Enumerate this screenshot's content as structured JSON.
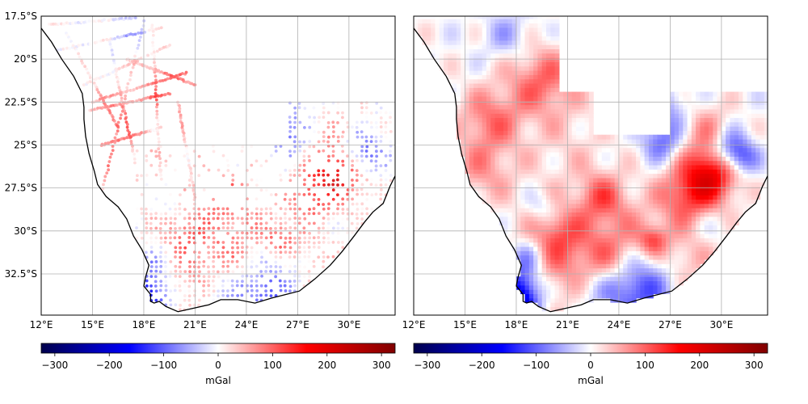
{
  "maps": [
    {
      "id": "left",
      "kind": "point-observations",
      "colorbar_label": "mGal"
    },
    {
      "id": "right",
      "kind": "gridded-field",
      "colorbar_label": "mGal"
    }
  ],
  "lon_ticks": [
    {
      "value": 12,
      "label": "12°E"
    },
    {
      "value": 15,
      "label": "15°E"
    },
    {
      "value": 18,
      "label": "18°E"
    },
    {
      "value": 21,
      "label": "21°E"
    },
    {
      "value": 24,
      "label": "24°E"
    },
    {
      "value": 27,
      "label": "27°E"
    },
    {
      "value": 30,
      "label": "30°E"
    }
  ],
  "lat_ticks": [
    {
      "value": -17.5,
      "label": "17.5°S"
    },
    {
      "value": -20,
      "label": "20°S"
    },
    {
      "value": -22.5,
      "label": "22.5°S"
    },
    {
      "value": -25,
      "label": "25°S"
    },
    {
      "value": -27.5,
      "label": "27.5°S"
    },
    {
      "value": -30,
      "label": "30°S"
    },
    {
      "value": -32.5,
      "label": "32.5°S"
    }
  ],
  "extent": {
    "lon": [
      12,
      32.7
    ],
    "lat": [
      -34.9,
      -17.5
    ]
  },
  "colorbar": {
    "range": [
      -325,
      325
    ],
    "ticks": [
      {
        "value": -300,
        "label": "−300"
      },
      {
        "value": -200,
        "label": "−200"
      },
      {
        "value": -100,
        "label": "−100"
      },
      {
        "value": 0,
        "label": "0"
      },
      {
        "value": 100,
        "label": "100"
      },
      {
        "value": 200,
        "label": "200"
      },
      {
        "value": 300,
        "label": "300"
      }
    ],
    "colormap": "seismic",
    "colors": [
      "#00004c",
      "#0000ff",
      "#ffffff",
      "#ff0000",
      "#800000"
    ]
  },
  "coastline": [
    [
      12.0,
      -18.2
    ],
    [
      12.6,
      -19.0
    ],
    [
      13.2,
      -20.0
    ],
    [
      13.9,
      -21.0
    ],
    [
      14.4,
      -22.0
    ],
    [
      14.5,
      -22.8
    ],
    [
      14.5,
      -23.5
    ],
    [
      14.6,
      -24.5
    ],
    [
      14.8,
      -25.5
    ],
    [
      15.1,
      -26.5
    ],
    [
      15.3,
      -27.3
    ],
    [
      15.8,
      -28.0
    ],
    [
      16.5,
      -28.6
    ],
    [
      17.0,
      -29.3
    ],
    [
      17.4,
      -30.3
    ],
    [
      17.9,
      -31.1
    ],
    [
      18.3,
      -32.0
    ],
    [
      18.1,
      -32.7
    ],
    [
      18.0,
      -33.2
    ],
    [
      18.4,
      -33.7
    ],
    [
      18.4,
      -34.1
    ],
    [
      18.6,
      -34.2
    ],
    [
      18.9,
      -34.1
    ],
    [
      19.3,
      -34.4
    ],
    [
      20.0,
      -34.7
    ],
    [
      20.9,
      -34.5
    ],
    [
      21.8,
      -34.3
    ],
    [
      22.5,
      -34.0
    ],
    [
      23.5,
      -34.0
    ],
    [
      24.5,
      -34.2
    ],
    [
      25.5,
      -33.9
    ],
    [
      26.3,
      -33.7
    ],
    [
      27.1,
      -33.5
    ],
    [
      28.0,
      -32.8
    ],
    [
      28.9,
      -32.0
    ],
    [
      29.6,
      -31.2
    ],
    [
      30.3,
      -30.3
    ],
    [
      30.9,
      -29.5
    ],
    [
      31.4,
      -28.9
    ],
    [
      32.0,
      -28.4
    ],
    [
      32.4,
      -27.4
    ],
    [
      32.7,
      -26.8
    ]
  ],
  "anomalies": [
    {
      "lon": 18.0,
      "lat": -34.4,
      "r": 0.9,
      "value": -220
    },
    {
      "lon": 18.3,
      "lat": -33.0,
      "r": 0.9,
      "value": -110
    },
    {
      "lon": 18.6,
      "lat": -31.5,
      "r": 0.7,
      "value": -70
    },
    {
      "lon": 25.0,
      "lat": -33.3,
      "r": 1.4,
      "value": -130
    },
    {
      "lon": 22.5,
      "lat": -33.2,
      "r": 1.2,
      "value": -60
    },
    {
      "lon": 17.5,
      "lat": -18.6,
      "r": 1.0,
      "value": -50
    },
    {
      "lon": 19.5,
      "lat": -28.6,
      "r": 0.6,
      "value": -40
    },
    {
      "lon": 27.0,
      "lat": -23.0,
      "r": 1.0,
      "value": -60
    },
    {
      "lon": 26.5,
      "lat": -24.8,
      "r": 0.8,
      "value": -90
    },
    {
      "lon": 30.5,
      "lat": -25.2,
      "r": 0.8,
      "value": -110
    },
    {
      "lon": 31.2,
      "lat": -25.8,
      "r": 0.7,
      "value": -80
    },
    {
      "lon": 29.0,
      "lat": -29.5,
      "r": 1.0,
      "value": -40
    },
    {
      "lon": 19.5,
      "lat": -21.2,
      "r": 1.4,
      "value": 95
    },
    {
      "lon": 16.5,
      "lat": -23.5,
      "r": 1.3,
      "value": 85
    },
    {
      "lon": 16.0,
      "lat": -26.5,
      "r": 1.3,
      "value": 60
    },
    {
      "lon": 21.0,
      "lat": -31.7,
      "r": 2.0,
      "value": 90
    },
    {
      "lon": 23.5,
      "lat": -32.0,
      "r": 1.2,
      "value": 60
    },
    {
      "lon": 23.0,
      "lat": -28.0,
      "r": 1.0,
      "value": 90
    },
    {
      "lon": 28.2,
      "lat": -28.0,
      "r": 1.3,
      "value": 130
    },
    {
      "lon": 29.5,
      "lat": -26.5,
      "r": 1.1,
      "value": 150
    },
    {
      "lon": 26.0,
      "lat": -30.5,
      "r": 0.6,
      "value": 90
    },
    {
      "lon": 20.5,
      "lat": -30.0,
      "r": 0.9,
      "value": 50
    },
    {
      "lon": 24.5,
      "lat": -30.0,
      "r": 1.4,
      "value": 40
    },
    {
      "lon": 21.0,
      "lat": -25.0,
      "r": 2.0,
      "value": 25
    },
    {
      "lon": 28.0,
      "lat": -31.5,
      "r": 1.2,
      "value": 50
    },
    {
      "lon": 29.0,
      "lat": -24.0,
      "r": 1.1,
      "value": 60
    }
  ]
}
